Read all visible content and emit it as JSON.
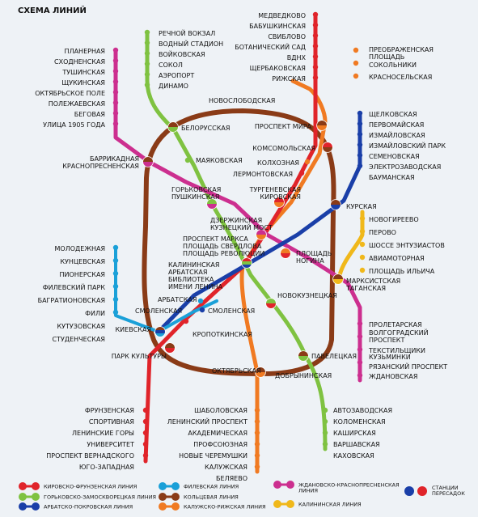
{
  "title": "СХЕМА ЛИНИЙ",
  "colors": {
    "kirovsko": "#e0242a",
    "gorkovsko": "#7fc241",
    "arbatsko": "#1a3fa8",
    "filevskaya": "#1aa0d8",
    "koltsevaya": "#8a3b17",
    "kaluzhsko": "#f07a22",
    "zhdanovsko": "#cc2f8f",
    "kalininskaya": "#f0b81a"
  },
  "stations": {
    "rechnoy": "РЕЧНОЙ ВОКЗАЛ",
    "vodny": "ВОДНЫЙ СТАДИОН",
    "voykovskaya": "ВОЙКОВСКАЯ",
    "sokol": "СОКОЛ",
    "aeroport": "АЭРОПОРТ",
    "dinamo": "ДИНАМО",
    "medvedkovo": "МЕДВЕДКОВО",
    "babushkinskaya": "БАБУШКИНСКАЯ",
    "sviblovo": "СВИБЛОВО",
    "botanichesky": "БОТАНИЧЕСКИЙ САД",
    "vdnh": "ВДНХ",
    "shcherbakovskaya": "ЩЕРБАКОВСКАЯ",
    "rizhskaya": "РИЖСКАЯ",
    "preobrazhenskaya": "ПРЕОБРАЖЕНСКАЯ\nПЛОЩАДЬ",
    "sokolniki": "СОКОЛЬНИКИ",
    "krasnoselskaya": "КРАСНОСЕЛЬСКАЯ",
    "planernaya": "ПЛАНЕРНАЯ",
    "skhodnenskaya": "СХОДНЕНСКАЯ",
    "tushinskaya": "ТУШИНСКАЯ",
    "shchukinskaya": "ЩУКИНСКАЯ",
    "oktyabrskoe": "ОКТЯБРЬСКОЕ ПОЛЕ",
    "polezhaevskaya": "ПОЛЕЖАЕВСКАЯ",
    "begovaya": "БЕГОВАЯ",
    "ulitsa1905": "УЛИЦА 1905 ГОДА",
    "novoslobodskaya": "НОВОСЛОБОДСКАЯ",
    "belorusskaya": "БЕЛОРУССКАЯ",
    "prospekt_mira": "ПРОСПЕКТ МИРА",
    "mayakovskaya": "МАЯКОВСКАЯ",
    "komsomolskaya": "КОМСОМОЛЬСКАЯ",
    "kolkhoznaya": "КОЛХОЗНАЯ",
    "lermontovskaya": "ЛЕРМОНТОВСКАЯ",
    "barrikadnaya": "БАРРИКАДНАЯ\nКРАСНОПРЕСНЕНСКАЯ",
    "gorkovskaya": "ГОРЬКОВСКАЯ\nПУШКИНСКАЯ",
    "turgenevskaya": "ТУРГЕНЕВСКАЯ\nКИРОВСКАЯ",
    "shchelkovskaya": "ЩЕЛКОВСКАЯ",
    "pervomayskaya": "ПЕРВОМАЙСКАЯ",
    "izmaylovskaya": "ИЗМАЙЛОВСКАЯ",
    "izmaylovsky_park": "ИЗМАЙЛОВСКИЙ ПАРК",
    "semenovskaya": "СЕМЕНОВСКАЯ",
    "elektrozavodskaya": "ЭЛЕКТРОЗАВОДСКАЯ",
    "baumanskaya": "БАУМАНСКАЯ",
    "kurskaya": "КУРСКАЯ",
    "novogireevo": "НОВОГИРЕЕВО",
    "perovo": "ПЕРОВО",
    "shosse": "ШОССЕ ЭНТУЗИАСТОВ",
    "aviamotornaya": "АВИАМОТОРНАЯ",
    "ilyicha": "ПЛОЩАДЬ ИЛЬИЧА",
    "dzerzhinskaya": "ДЗЕРЖИНСКАЯ\nКУЗНЕЦКИЙ МОСТ",
    "prospekt_marksa": "ПРОСПЕКТ МАРКСА\nПЛОЩАДЬ СВЕРДЛОВА\nПЛОЩАДЬ РЕВОЛЮЦИИ",
    "nogina": "ПЛОЩАДЬ\nНОГИНА",
    "kalininskaya": "КАЛИНИНСКАЯ\nАРБАТСКАЯ\nБИБЛИОТЕКА\nИМЕНИ ЛЕНИНА",
    "molodezhnaya": "МОЛОДЕЖНАЯ",
    "kuntsevskaya": "КУНЦЕВСКАЯ",
    "pionerskaya": "ПИОНЕРСКАЯ",
    "filevsky_park": "ФИЛЕВСКИЙ ПАРК",
    "bagrationovskaya": "БАГРАТИОНОВСКАЯ",
    "fili": "ФИЛИ",
    "kutuzovskaya": "КУТУЗОВСКАЯ",
    "studencheskaya": "СТУДЕНЧЕСКАЯ",
    "marksistskaya": "МАРКСИСТСКАЯ\nТАГАНСКАЯ",
    "novokuznetskaya": "НОВОКУЗНЕЦКАЯ",
    "arbatskaya": "АРБАТСКАЯ",
    "smolenskaya_a": "СМОЛЕНСКАЯ",
    "smolenskaya_f": "СМОЛЕНСКАЯ",
    "kievskaya": "КИЕВСКАЯ",
    "kropotkinskaya": "КРОПОТКИНСКАЯ",
    "park_kultury": "ПАРК КУЛЬТУРЫ",
    "oktyabrskaya": "ОКТЯБРЬСКАЯ",
    "paveletskaya": "ПАВЕЛЕЦКАЯ",
    "dobryninskaya": "ДОБРЫНИНСКАЯ",
    "proletarskaya": "ПРОЛЕТАРСКАЯ",
    "volgogradsky": "ВОЛГОГРАДСКИЙ\nПРОСПЕКТ",
    "tekstilshchiki": "ТЕКСТИЛЬЩИКИ",
    "kuzminki": "КУЗЬМИНКИ",
    "ryazansky": "РЯЗАНСКИЙ ПРОСПЕКТ",
    "zhdanovskaya": "ЖДАНОВСКАЯ",
    "frunzenskaya": "ФРУНЗЕНСКАЯ",
    "sportivnaya": "СПОРТИВНАЯ",
    "leninskie": "ЛЕНИНСКИЕ ГОРЫ",
    "universitet": "УНИВЕРСИТЕТ",
    "vernadskogo": "ПРОСПЕКТ ВЕРНАДСКОГО",
    "yugo_zapadnaya": "ЮГО-ЗАПАДНАЯ",
    "shabolovskaya": "ШАБОЛОВСКАЯ",
    "leninsky": "ЛЕНИНСКИЙ ПРОСПЕКТ",
    "akademicheskaya": "АКАДЕМИЧЕСКАЯ",
    "profsoyuznaya": "ПРОФСОЮЗНАЯ",
    "novye_cheremushki": "НОВЫЕ ЧЕРЕМУШКИ",
    "kaluzhskaya": "КАЛУЖСКАЯ",
    "belyaevo": "БЕЛЯЕВО",
    "avtozavodskaya": "АВТОЗАВОДСКАЯ",
    "kolomenskaya": "КОЛОМЕНСКАЯ",
    "kashirskaya": "КАШИРСКАЯ",
    "varshavskaya": "ВАРШАВСКАЯ",
    "kakhovskaya": "КАХОВСКАЯ"
  },
  "legend": {
    "kirovsko": "КИРОВСКО-ФРУНЗЕНСКАЯ ЛИНИЯ",
    "gorkovsko": "ГОРЬКОВСКО-ЗАМОСКВОРЕЦКАЯ ЛИНИЯ",
    "arbatsko": "АРБАТСКО-ПОКРОВСКАЯ ЛИНИЯ",
    "filevskaya": "ФИЛЕВСКАЯ ЛИНИЯ",
    "koltsevaya": "КОЛЬЦЕВАЯ ЛИНИЯ",
    "kaluzhsko": "КАЛУЖСКО-РИЖСКАЯ ЛИНИЯ",
    "zhdanovsko": "ЖДАНОВСКО-КРАСНОПРЕСНЕНСКАЯ\nЛИНИЯ",
    "kalininskaya": "КАЛИНИНСКАЯ ЛИНИЯ",
    "transfer": "СТАНЦИИ\nПЕРЕСАДОК"
  }
}
